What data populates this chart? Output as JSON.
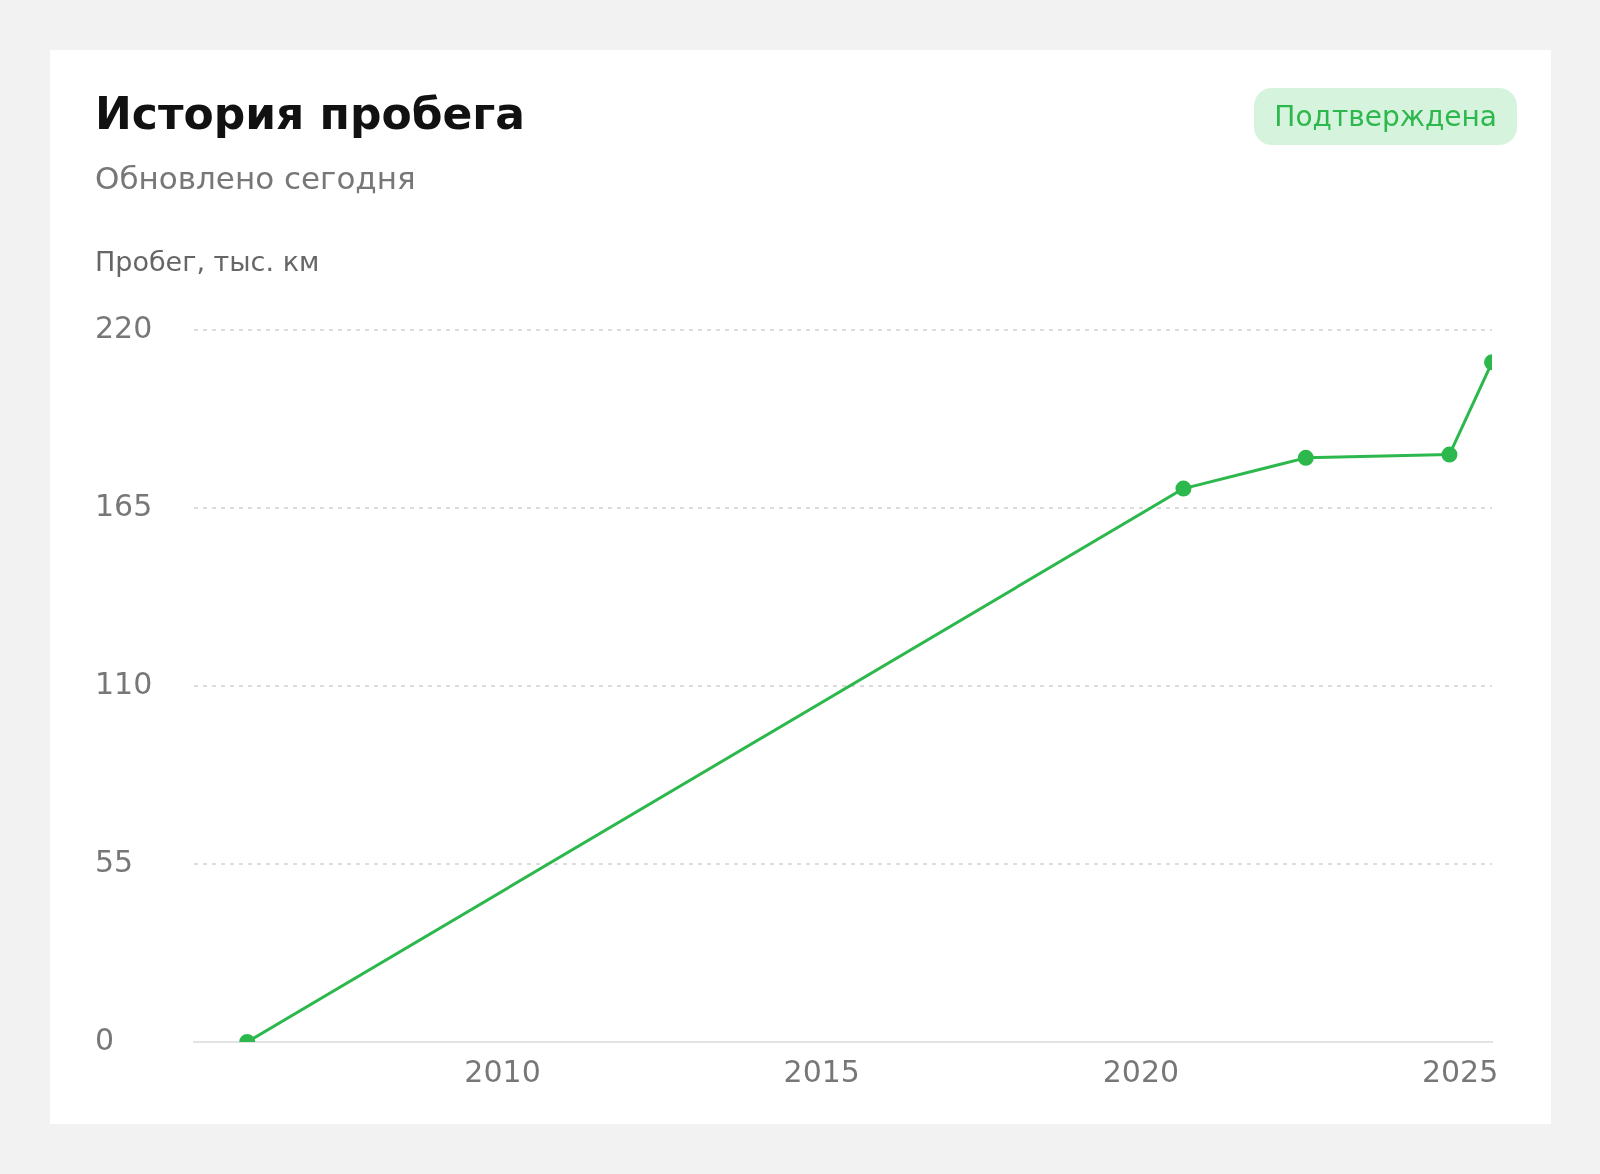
{
  "chart_data": {
    "type": "line",
    "title": "История пробега",
    "subtitle": "Обновлено сегодня",
    "ylabel": "Пробег, тыс. км",
    "annotations": [
      "Подтверждена"
    ],
    "x": [
      "2006-01",
      "2020-09",
      "2022-08",
      "2024-11",
      "2025-07"
    ],
    "series": [
      {
        "color": "#2db84d",
        "values": [
          0,
          171,
          180.5,
          181.5,
          210
        ]
      }
    ],
    "xlim": [
      "2005-03",
      "2025-07"
    ],
    "xticks": [
      "2010",
      "2015",
      "2020",
      "2025"
    ],
    "ylim": [
      0,
      220
    ],
    "yticks": [
      0,
      55,
      110,
      165,
      220
    ],
    "grid": "y",
    "legend": false,
    "marker": "circle",
    "line_style": "solid"
  }
}
